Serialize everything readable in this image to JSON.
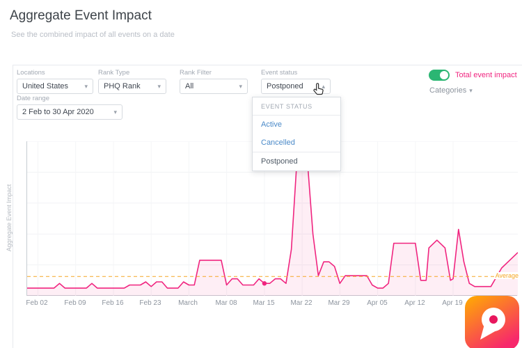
{
  "theme": {
    "accent_pink": "#f0247f",
    "toggle_green": "#2bb673",
    "link_blue": "#4a89c8",
    "average_orange": "#f5a623"
  },
  "header": {
    "title": "Aggregate Event Impact",
    "subtitle": "See the combined impact of all events on a date"
  },
  "icons": {
    "chevron_down": "▾",
    "chevron_up": "▴"
  },
  "filters": {
    "locations": {
      "label": "Locations",
      "value": "United States"
    },
    "rank_type": {
      "label": "Rank Type",
      "value": "PHQ Rank"
    },
    "rank_filter": {
      "label": "Rank Filter",
      "value": "All"
    },
    "event_status": {
      "label": "Event status",
      "value": "Postponed"
    },
    "date_range": {
      "label": "Date range",
      "value": "2 Feb to 30 Apr 2020"
    },
    "total_event_impact": {
      "label": "Total event impact",
      "enabled": true
    },
    "categories": {
      "label": "Categories"
    }
  },
  "dropdown": {
    "title": "EVENT STATUS",
    "items": [
      {
        "label": "Active",
        "selected": false
      },
      {
        "label": "Cancelled",
        "selected": false
      },
      {
        "label": "Postponed",
        "selected": true
      }
    ]
  },
  "chart_data": {
    "type": "area",
    "title": "",
    "xlabel": "",
    "ylabel": "Aggregate Event Impact",
    "xlim": [
      -2,
      89
    ],
    "ylim": [
      0,
      100
    ],
    "grid": true,
    "line_color": "#f0247f",
    "fill_color": "rgba(240,36,127,0.08)",
    "ticks": [
      {
        "day": 0,
        "label": "Feb 02"
      },
      {
        "day": 7,
        "label": "Feb 09"
      },
      {
        "day": 14,
        "label": "Feb 16"
      },
      {
        "day": 21,
        "label": "Feb 23"
      },
      {
        "day": 28,
        "label": "March"
      },
      {
        "day": 35,
        "label": "Mar 08"
      },
      {
        "day": 42,
        "label": "Mar 15"
      },
      {
        "day": 49,
        "label": "Mar 22"
      },
      {
        "day": 56,
        "label": "Mar 29"
      },
      {
        "day": 63,
        "label": "Apr 05"
      },
      {
        "day": 70,
        "label": "Apr 12"
      },
      {
        "day": 77,
        "label": "Apr 19"
      }
    ],
    "points": [
      [
        -2,
        5
      ],
      [
        0,
        5
      ],
      [
        3,
        5
      ],
      [
        4,
        8
      ],
      [
        5,
        5
      ],
      [
        9,
        5
      ],
      [
        10,
        8
      ],
      [
        11,
        5
      ],
      [
        16,
        5
      ],
      [
        17,
        7
      ],
      [
        19,
        7
      ],
      [
        20,
        9
      ],
      [
        21,
        6
      ],
      [
        22,
        9
      ],
      [
        23,
        9
      ],
      [
        24,
        5
      ],
      [
        26,
        5
      ],
      [
        27,
        9
      ],
      [
        28,
        7
      ],
      [
        29,
        7
      ],
      [
        30,
        23
      ],
      [
        31,
        23
      ],
      [
        34,
        23
      ],
      [
        35,
        7
      ],
      [
        36,
        11
      ],
      [
        37,
        11
      ],
      [
        38,
        7
      ],
      [
        40,
        7
      ],
      [
        41,
        11
      ],
      [
        42,
        8
      ],
      [
        43,
        8
      ],
      [
        44,
        11
      ],
      [
        45,
        11
      ],
      [
        46,
        8
      ],
      [
        47,
        30
      ],
      [
        48,
        86
      ],
      [
        49,
        88
      ],
      [
        50,
        86
      ],
      [
        51,
        40
      ],
      [
        52,
        13
      ],
      [
        53,
        22
      ],
      [
        54,
        22
      ],
      [
        55,
        19
      ],
      [
        56,
        8
      ],
      [
        57,
        13
      ],
      [
        58,
        13
      ],
      [
        61,
        13
      ],
      [
        62,
        7
      ],
      [
        63,
        5
      ],
      [
        64,
        5
      ],
      [
        65,
        8
      ],
      [
        66,
        34
      ],
      [
        70,
        34
      ],
      [
        71,
        10
      ],
      [
        72,
        10
      ],
      [
        72.5,
        31
      ],
      [
        74,
        36
      ],
      [
        75.5,
        31
      ],
      [
        76.5,
        10
      ],
      [
        77,
        11
      ],
      [
        78,
        43
      ],
      [
        79,
        22
      ],
      [
        80,
        8
      ],
      [
        81,
        6
      ],
      [
        84,
        6
      ],
      [
        86,
        18
      ],
      [
        89,
        28
      ]
    ],
    "marker": {
      "x": 42,
      "y": 8
    },
    "average": {
      "value": 12.5,
      "label": "Average",
      "color": "#f5a623"
    }
  }
}
